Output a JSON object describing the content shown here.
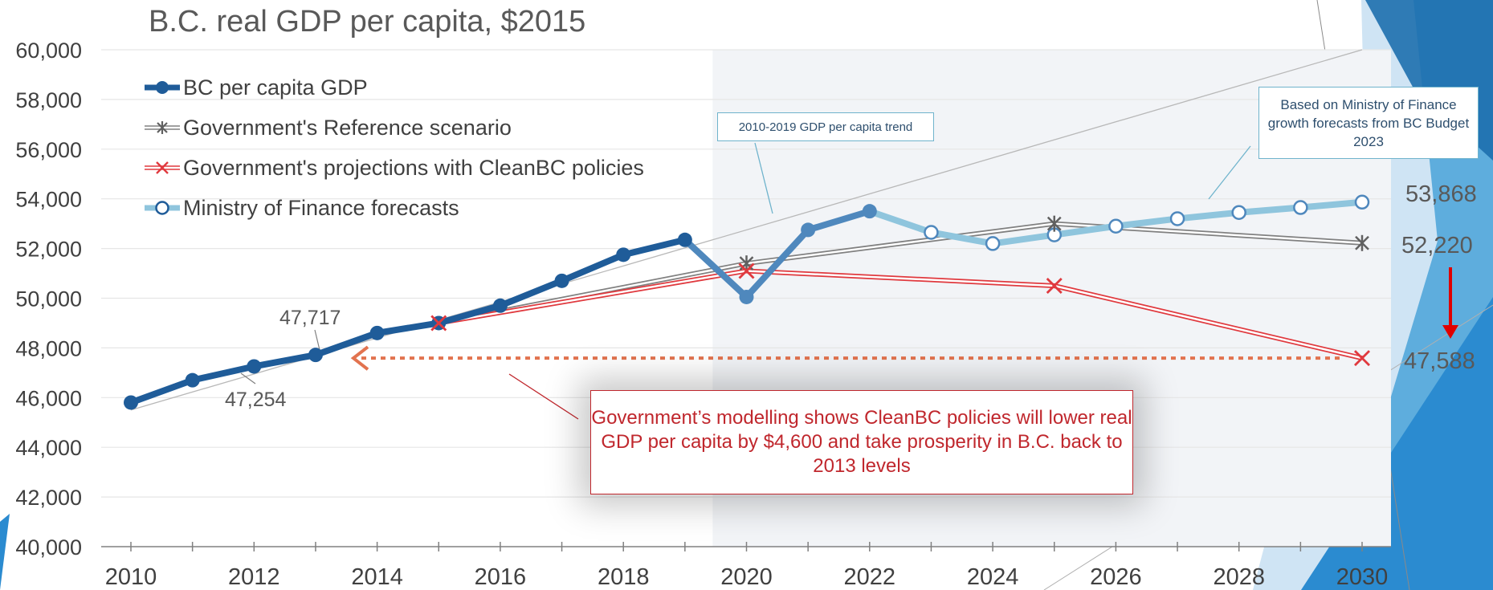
{
  "chart_data": {
    "type": "line",
    "title": "B.C. real GDP per capita, $2015",
    "xlabel": "",
    "ylabel": "",
    "xlim": [
      2010,
      2030
    ],
    "ylim": [
      40000,
      60000
    ],
    "yticks": [
      40000,
      42000,
      44000,
      46000,
      48000,
      50000,
      52000,
      54000,
      56000,
      58000,
      60000
    ],
    "ytick_labels": [
      "40,000",
      "42,000",
      "44,000",
      "46,000",
      "48,000",
      "50,000",
      "52,000",
      "54,000",
      "56,000",
      "58,000",
      "60,000"
    ],
    "xticks": [
      2010,
      2012,
      2014,
      2016,
      2018,
      2020,
      2022,
      2024,
      2026,
      2028,
      2030
    ],
    "xtick_labels": [
      "2010",
      "2012",
      "2014",
      "2016",
      "2018",
      "2020",
      "2022",
      "2024",
      "2026",
      "2028",
      "2030"
    ],
    "grid": true,
    "legend_position": "top-left",
    "series": [
      {
        "name": "BC per capita GDP",
        "color": "#1f5c99",
        "marker": "filled-circle",
        "points": [
          [
            2010,
            45800
          ],
          [
            2011,
            46700
          ],
          [
            2012,
            47254
          ],
          [
            2013,
            47717
          ],
          [
            2014,
            48600
          ],
          [
            2015,
            49000
          ],
          [
            2016,
            49700
          ],
          [
            2017,
            50700
          ],
          [
            2018,
            51750
          ],
          [
            2019,
            52350
          ],
          [
            2020,
            50050
          ],
          [
            2021,
            52750
          ],
          [
            2022,
            53500
          ]
        ]
      },
      {
        "name": "Government's Reference scenario",
        "color": "#808080",
        "marker": "asterisk",
        "points": [
          [
            2015,
            49000
          ],
          [
            2020,
            51400
          ],
          [
            2025,
            53000
          ],
          [
            2030,
            52220
          ]
        ]
      },
      {
        "name": "Government's projections with CleanBC policies",
        "color": "#e0393e",
        "marker": "x",
        "points": [
          [
            2015,
            49000
          ],
          [
            2020,
            51100
          ],
          [
            2025,
            50500
          ],
          [
            2030,
            47588
          ]
        ]
      },
      {
        "name": "Ministry of Finance forecasts",
        "color": "#8fc5dd",
        "marker": "open-circle",
        "points": [
          [
            2022,
            53500
          ],
          [
            2023,
            52650
          ],
          [
            2024,
            52200
          ],
          [
            2025,
            52550
          ],
          [
            2026,
            52900
          ],
          [
            2027,
            53200
          ],
          [
            2028,
            53450
          ],
          [
            2029,
            53650
          ],
          [
            2030,
            53868
          ]
        ]
      }
    ],
    "trend_line": {
      "points": [
        [
          2010,
          45500
        ],
        [
          2030,
          60000
        ]
      ]
    },
    "end_labels": [
      "53,868",
      "52,220",
      "47,588"
    ],
    "point_labels": [
      "47,717",
      "47,254"
    ],
    "annotations": {
      "trend_box": "2010-2019 GDP per capita trend",
      "mof_box": "Based on Ministry of Finance growth forecasts from BC Budget 2023",
      "callout": "Government’s modelling shows CleanBC policies will lower real GDP per capita by $4,600 and take prosperity in B.C. back to 2013 levels"
    },
    "colors": {
      "shade": "#f2f4f7",
      "gridline": "#e6e6e6",
      "axis": "#808080",
      "arrow_orange": "#e2734f",
      "arrow_red": "#e00000",
      "deco_light": "#b8d7ee",
      "deco_mid": "#3b98d0",
      "deco_dark": "#1a6fb5"
    }
  }
}
